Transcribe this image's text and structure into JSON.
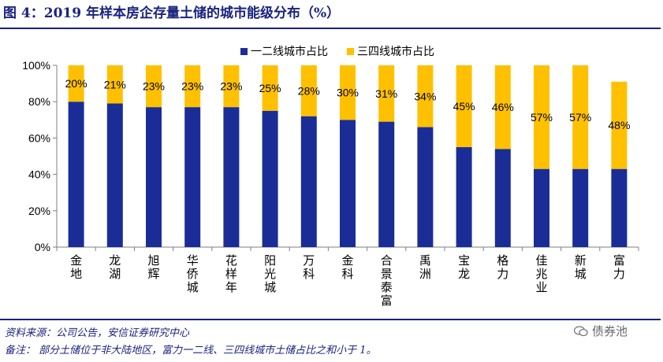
{
  "figure": {
    "title": "图 4：2019 年样本房企存量土储的城市能级分布（%）",
    "source": "资料来源：公司公告，安信证券研究中心",
    "note": "备注：  部分土储位于非大陆地区，富力一二线、三四线城市土储占比之和小于 1。",
    "watermark": "债券池"
  },
  "colors": {
    "tier12": "#1a2d96",
    "tier34": "#ffc000",
    "axis": "#7f7f7f",
    "text": "#000000"
  },
  "chart_data": {
    "type": "bar",
    "stacked": true,
    "categories": [
      "金地",
      "龙湖",
      "旭辉",
      "华侨城",
      "花样年",
      "阳光城",
      "万科",
      "金科",
      "合景泰富",
      "禹洲",
      "宝龙",
      "格力",
      "佳兆业",
      "新城",
      "富力"
    ],
    "series": [
      {
        "name": "一二线城市占比",
        "values": [
          80,
          79,
          77,
          77,
          77,
          75,
          72,
          70,
          69,
          66,
          55,
          54,
          43,
          43,
          43
        ]
      },
      {
        "name": "三四线城市占比",
        "values": [
          20,
          21,
          23,
          23,
          23,
          25,
          28,
          30,
          31,
          34,
          45,
          46,
          57,
          57,
          48
        ]
      }
    ],
    "data_labels": [
      "20%",
      "21%",
      "23%",
      "23%",
      "23%",
      "25%",
      "28%",
      "30%",
      "31%",
      "34%",
      "45%",
      "46%",
      "57%",
      "57%",
      "48%"
    ],
    "ylim": [
      0,
      100
    ],
    "y_ticks": [
      "0%",
      "20%",
      "40%",
      "60%",
      "80%",
      "100%"
    ],
    "legend_position": "top-center",
    "grid": false
  }
}
